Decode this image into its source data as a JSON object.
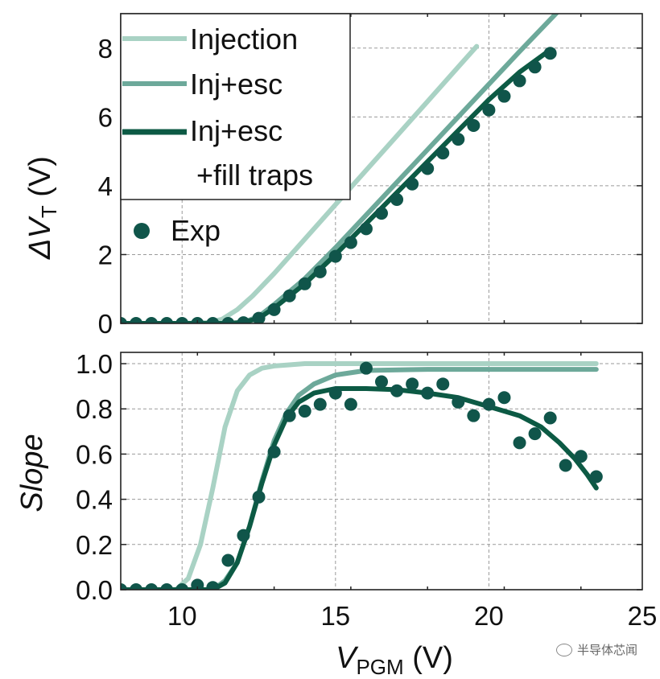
{
  "chart_data": [
    {
      "type": "line",
      "panel": "top",
      "ylabel_main": "ΔV",
      "ylabel_sub": "T",
      "ylabel_unit": " (V)",
      "xlim": [
        8,
        25
      ],
      "ylim": [
        0,
        9
      ],
      "yticks": [
        0,
        2,
        4,
        6,
        8
      ],
      "grid": true,
      "series": [
        {
          "name": "Injection",
          "color": "#a9d2c4",
          "width": 6,
          "x": [
            8,
            10,
            10.8,
            11.3,
            11.8,
            12.3,
            13,
            14,
            15,
            16,
            17,
            18,
            19,
            19.6
          ],
          "y": [
            0,
            0,
            0.02,
            0.12,
            0.4,
            0.8,
            1.45,
            2.45,
            3.45,
            4.45,
            5.45,
            6.45,
            7.45,
            8.05
          ]
        },
        {
          "name": "Inj+esc",
          "color": "#6da99a",
          "width": 6,
          "x": [
            8,
            11.5,
            12,
            12.5,
            13,
            14,
            15,
            16,
            17,
            18,
            19,
            20,
            21,
            22.4
          ],
          "y": [
            0,
            0,
            0.03,
            0.2,
            0.55,
            1.3,
            2.2,
            3.15,
            4.1,
            5.05,
            6.0,
            6.95,
            7.9,
            9.2
          ]
        },
        {
          "name": "Inj+esc\n+fill traps",
          "color": "#0c5a44",
          "width": 6,
          "x": [
            8,
            11.5,
            12,
            12.5,
            13,
            14,
            15,
            16,
            17,
            18,
            19,
            20,
            21,
            22
          ],
          "y": [
            0,
            0,
            0.03,
            0.15,
            0.45,
            1.15,
            2.0,
            2.9,
            3.8,
            4.7,
            5.6,
            6.5,
            7.3,
            7.95
          ]
        }
      ],
      "points": {
        "name": "Exp",
        "color": "#10554a",
        "x": [
          8,
          8.5,
          9,
          9.5,
          10,
          10.5,
          11,
          11.5,
          12,
          12.5,
          13,
          13.5,
          14,
          14.5,
          15,
          15.5,
          16,
          16.5,
          17,
          17.5,
          18,
          18.5,
          19,
          19.5,
          20,
          20.5,
          21,
          21.5,
          22
        ],
        "y": [
          0,
          0,
          0,
          0,
          0,
          0,
          0,
          0,
          0.02,
          0.15,
          0.4,
          0.8,
          1.15,
          1.5,
          1.95,
          2.35,
          2.75,
          3.2,
          3.6,
          4.05,
          4.5,
          4.95,
          5.35,
          5.75,
          6.2,
          6.6,
          7.05,
          7.45,
          7.85
        ]
      },
      "legend": {
        "placement": "top-left",
        "entries": [
          "Injection",
          "Inj+esc",
          "Inj+esc",
          "+fill traps",
          "Exp"
        ]
      }
    },
    {
      "type": "line",
      "panel": "bottom",
      "ylabel": "Slope",
      "xlabel_main": "V",
      "xlabel_sub": "PGM",
      "xlabel_unit": " (V)",
      "xlim": [
        8,
        25
      ],
      "ylim": [
        0,
        1.05
      ],
      "xticks": [
        10,
        15,
        20,
        25
      ],
      "yticks": [
        0.0,
        0.2,
        0.4,
        0.6,
        0.8,
        1.0
      ],
      "ytick_labels": [
        "0.0",
        "0.2",
        "0.4",
        "0.6",
        "0.8",
        "1.0"
      ],
      "grid": true,
      "series": [
        {
          "name": "Injection",
          "color": "#a9d2c4",
          "width": 6,
          "x": [
            8,
            9.8,
            10.2,
            10.6,
            11,
            11.4,
            11.8,
            12.2,
            12.6,
            13,
            13.5,
            14,
            15,
            17,
            20,
            23.5
          ],
          "y": [
            0,
            0.0,
            0.05,
            0.2,
            0.45,
            0.72,
            0.88,
            0.95,
            0.98,
            0.99,
            0.995,
            1.0,
            1.0,
            1.0,
            1.0,
            1.0
          ]
        },
        {
          "name": "Inj+esc",
          "color": "#6da99a",
          "width": 6,
          "x": [
            8,
            11,
            11.4,
            11.8,
            12.2,
            12.6,
            13,
            13.4,
            13.8,
            14.3,
            15,
            16,
            18,
            20,
            23.5
          ],
          "y": [
            0,
            0,
            0.04,
            0.12,
            0.28,
            0.48,
            0.66,
            0.78,
            0.86,
            0.91,
            0.95,
            0.97,
            0.975,
            0.975,
            0.975
          ]
        },
        {
          "name": "Inj+esc\n+fill traps",
          "color": "#0c5a44",
          "width": 6,
          "x": [
            8,
            11,
            11.4,
            11.8,
            12.2,
            12.6,
            13,
            13.4,
            13.8,
            14.3,
            15,
            16,
            17,
            18,
            19,
            20,
            21,
            21.7,
            22.3,
            22.8,
            23.2,
            23.5
          ],
          "y": [
            0,
            0,
            0.03,
            0.12,
            0.28,
            0.47,
            0.64,
            0.76,
            0.83,
            0.87,
            0.89,
            0.89,
            0.885,
            0.87,
            0.85,
            0.81,
            0.77,
            0.72,
            0.65,
            0.58,
            0.51,
            0.45
          ]
        }
      ],
      "points": {
        "name": "Exp",
        "color": "#10554a",
        "x": [
          8,
          8.5,
          9,
          9.5,
          10,
          10.5,
          11,
          11.5,
          12,
          12.5,
          13,
          13.5,
          14,
          14.5,
          15,
          15.5,
          16,
          16.5,
          17,
          17.5,
          18,
          18.5,
          19,
          19.5,
          20,
          20.5,
          21,
          21.5,
          22,
          22.5,
          23,
          23.5
        ],
        "y": [
          0,
          0,
          0,
          0,
          0,
          0.02,
          0.01,
          0.13,
          0.24,
          0.41,
          0.61,
          0.77,
          0.79,
          0.82,
          0.87,
          0.82,
          0.98,
          0.92,
          0.88,
          0.91,
          0.87,
          0.91,
          0.83,
          0.77,
          0.82,
          0.85,
          0.65,
          0.69,
          0.76,
          0.55,
          0.59,
          0.5
        ]
      }
    }
  ],
  "watermark": {
    "text": "半导体芯闻",
    "icon": "wechat-icon"
  }
}
